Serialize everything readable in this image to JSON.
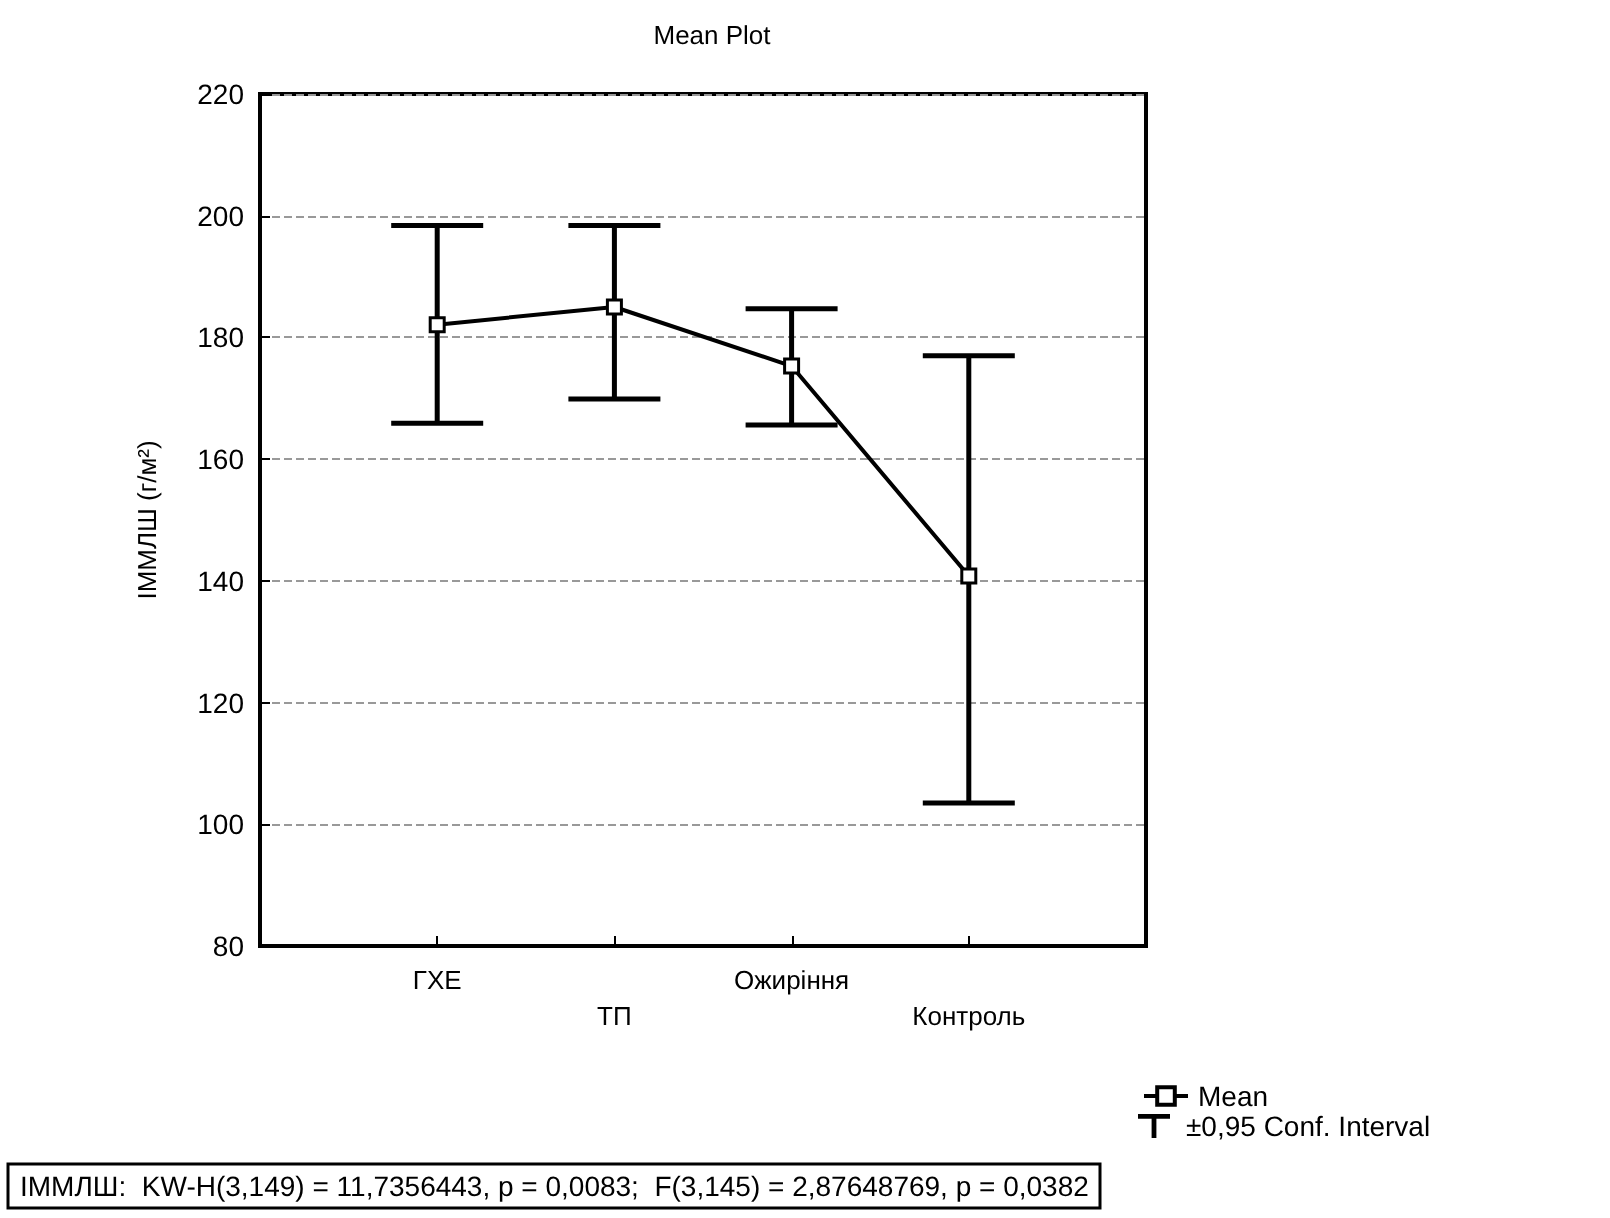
{
  "chart_data": {
    "type": "line",
    "title": "Mean Plot",
    "ylabel": "ІММЛШ (г/м²)",
    "categories": [
      null,
      "ГХЕ",
      "ТП",
      "Ожиріння",
      "Контроль",
      null
    ],
    "series": [
      {
        "name": "Mean",
        "color": "#000000",
        "values": [
          null,
          182.1,
          185,
          175.3,
          140.8,
          null
        ],
        "errors": [
          null,
          [
            165.9,
            198.4
          ],
          [
            169.9,
            198.4
          ],
          [
            165.6,
            184.7
          ],
          [
            103.5,
            177
          ],
          null
        ]
      }
    ],
    "ylim": [
      80,
      220
    ],
    "yticks": [
      80,
      100,
      120,
      140,
      160,
      180,
      200,
      220
    ],
    "grid": "y",
    "legend": "bottom right",
    "marker": "square",
    "annotations": [
      "ІММЛШ:  KW-H(3,149) = 11,7356443, p = 0,0083;  F(3,145) = 2,87648769, p = 0,0382",
      "±0,95 Conf. Interval"
    ]
  }
}
